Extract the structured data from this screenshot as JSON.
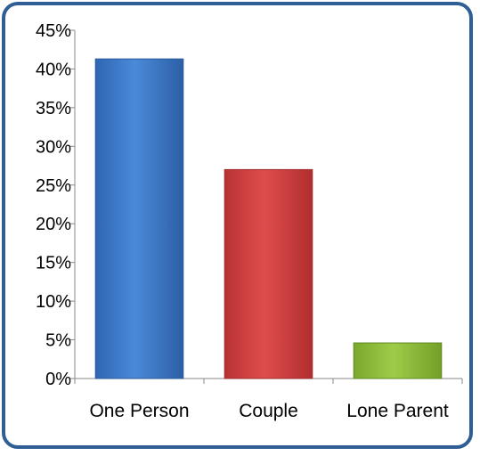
{
  "chart_data": {
    "type": "bar",
    "title": "",
    "xlabel": "",
    "ylabel": "",
    "categories": [
      "One Person",
      "Couple",
      "Lone Parent"
    ],
    "values": [
      41.3,
      27.0,
      4.6
    ],
    "ylim": [
      0,
      45
    ],
    "yticks": [
      0,
      5,
      10,
      15,
      20,
      25,
      30,
      35,
      40,
      45
    ],
    "ytick_format": "%",
    "grid": false,
    "legend": "none",
    "colors": {
      "bars": [
        "#3f7ccf",
        "#d24444",
        "#8fbf3a"
      ],
      "bar_edges": [
        "#2a5a9a",
        "#9e2c2c",
        "#5f8a22"
      ],
      "frame": "#2f5e94",
      "axis": "#888888"
    }
  }
}
